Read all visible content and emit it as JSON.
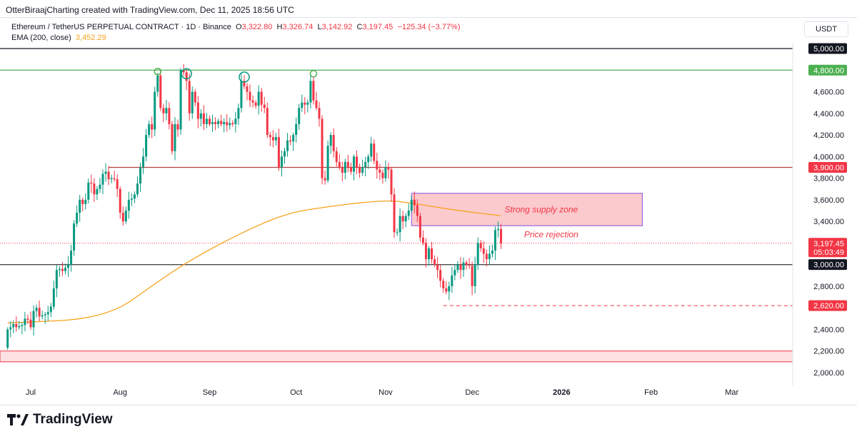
{
  "credit": "OtterBiraajCharting created with TradingView.com, Dec 11, 2025 18:56 UTC",
  "legend": {
    "symbol": "Ethereum / TetherUS PERPETUAL CONTRACT · 1D · Binance",
    "o_label": "O",
    "o": "3,322.80",
    "h_label": "H",
    "h": "3,326.74",
    "l_label": "L",
    "l": "3,142.92",
    "c_label": "C",
    "c": "3,197.45",
    "change": "−125.34 (−3.77%)",
    "ema_label": "EMA (200, close)",
    "ema_value": "3,452.29"
  },
  "currency_button": "USDT",
  "logo": "TradingView",
  "colors": {
    "up": "#089981",
    "down": "#f23645",
    "ema": "#f7a21b",
    "resistance_green": "#4caf50",
    "level_red": "#b2413f",
    "zone_fill": "#f9c4c8",
    "zone_border": "#9c6ade"
  },
  "chart_data": {
    "type": "candlestick",
    "title": "",
    "ylim": [
      2000,
      5000
    ],
    "y_ticks": [
      "4,600.00",
      "4,400.00",
      "4,200.00",
      "4,000.00",
      "3,800.00",
      "3,600.00",
      "3,400.00",
      "2,800.00",
      "2,400.00",
      "2,200.00",
      "2,000.00"
    ],
    "x_ticks": [
      {
        "label": "Jul",
        "date": "2025-07-01"
      },
      {
        "label": "Aug",
        "date": "2025-08-01"
      },
      {
        "label": "Sep",
        "date": "2025-09-01"
      },
      {
        "label": "Oct",
        "date": "2025-10-01"
      },
      {
        "label": "Nov",
        "date": "2025-11-01"
      },
      {
        "label": "Dec",
        "date": "2025-12-01"
      },
      {
        "label": "2026",
        "date": "2026-01-01",
        "bold": true
      },
      {
        "label": "Feb",
        "date": "2026-02-01"
      },
      {
        "label": "Mar",
        "date": "2026-03-01"
      }
    ],
    "xlim": [
      "2025-06-22",
      "2026-03-25"
    ],
    "first_open": 2230,
    "candles": [
      {
        "month": "2025-06",
        "first_day": 23,
        "close": [
          2400,
          2420,
          2450,
          2420,
          2430,
          2440,
          2500,
          2490
        ]
      },
      {
        "month": "2025-07",
        "first_day": 1,
        "close": [
          2420,
          2570,
          2600,
          2520,
          2530,
          2540,
          2560,
          2610,
          2780,
          2950,
          2960,
          2940,
          2970,
          3000,
          3130,
          3380,
          3480,
          3600,
          3560,
          3600,
          3760,
          3750,
          3650,
          3700,
          3740,
          3840,
          3860,
          3790,
          3800,
          3790,
          3700
        ]
      },
      {
        "month": "2025-08",
        "first_day": 1,
        "close": [
          3480,
          3400,
          3500,
          3600,
          3610,
          3650,
          3750,
          3900,
          4000,
          4200,
          4300,
          4250,
          4600,
          4750,
          4450,
          4400,
          4450,
          4300,
          4050,
          4300,
          4250,
          4800,
          4780,
          4700,
          4400,
          4600,
          4500,
          4350,
          4400,
          4300,
          4350
        ]
      },
      {
        "month": "2025-09",
        "first_day": 1,
        "close": [
          4300,
          4320,
          4300,
          4330,
          4300,
          4320,
          4290,
          4310,
          4300,
          4350,
          4450,
          4700,
          4650,
          4600,
          4520,
          4500,
          4470,
          4600,
          4480,
          4450,
          4200,
          4180,
          4150,
          4180,
          3900,
          4000,
          4050,
          4150,
          4140,
          4200
        ]
      },
      {
        "month": "2025-10",
        "first_day": 1,
        "close": [
          4300,
          4450,
          4500,
          4480,
          4500,
          4700,
          4520,
          4450,
          4350,
          3800,
          3780,
          4100,
          4200,
          4050,
          3950,
          3900,
          3850,
          3950,
          3900,
          3860,
          4000,
          3900,
          3850,
          3900,
          3950,
          4000,
          4120,
          3960,
          3880,
          3850,
          3800
        ]
      },
      {
        "month": "2025-11",
        "first_day": 1,
        "close": [
          3900,
          3880,
          3650,
          3300,
          3300,
          3450,
          3400,
          3450,
          3500,
          3600,
          3550,
          3450,
          3250,
          3200,
          3050,
          3150,
          3050,
          3000,
          2950,
          2850,
          2780,
          2750,
          2800,
          2900,
          2950,
          3000,
          2950,
          3020,
          3000,
          2990
        ]
      },
      {
        "month": "2025-12",
        "first_day": 1,
        "close": [
          2800,
          3000,
          3200,
          3150,
          3100,
          3050,
          3100,
          3130,
          3320,
          3330,
          3197.45
        ]
      }
    ],
    "ema_200": [
      {
        "date": "2025-06-23",
        "value": 2460
      },
      {
        "date": "2025-07-27",
        "value": 2500
      },
      {
        "date": "2025-08-14",
        "value": 2840
      },
      {
        "date": "2025-08-24",
        "value": 3020
      },
      {
        "date": "2025-09-10",
        "value": 3270
      },
      {
        "date": "2025-09-27",
        "value": 3470
      },
      {
        "date": "2025-10-10",
        "value": 3530
      },
      {
        "date": "2025-11-01",
        "value": 3600
      },
      {
        "date": "2025-11-11",
        "value": 3565
      },
      {
        "date": "2025-11-26",
        "value": 3500
      },
      {
        "date": "2025-12-11",
        "value": 3452.29
      }
    ],
    "levels": [
      {
        "price": 5000,
        "label": "5,000.00",
        "style": "solid",
        "color": "#131722",
        "badge": "#131722"
      },
      {
        "price": 4800,
        "label": "4,800.00",
        "style": "solid",
        "color": "#4caf50",
        "badge": "#4caf50"
      },
      {
        "price": 3900,
        "label": "3,900.00",
        "style": "solid",
        "color": "#b2413f",
        "badge": "#f23645",
        "from": "2025-07-28"
      },
      {
        "price": 3000,
        "label": "3,000.00",
        "style": "solid",
        "color": "#4a4a4a",
        "badge": "#131722"
      },
      {
        "price": 2620,
        "label": "2,620.00",
        "style": "dashed",
        "color": "#f23645",
        "badge": "#f23645",
        "from": "2025-11-21"
      }
    ],
    "current_price": {
      "price": 3197.45,
      "label": "3,197.45",
      "countdown": "05:03:49"
    },
    "supply_zone": {
      "label": "Strong supply zone",
      "top": 3660,
      "bottom": 3360,
      "from": "2025-11-10",
      "to": "2026-01-29"
    },
    "demand_band": {
      "top": 2200,
      "bottom": 2100
    },
    "annotations": [
      {
        "text": "Price rejection",
        "date": "2025-12-19",
        "price": 3280
      }
    ],
    "top_markers": [
      {
        "date": "2025-08-14",
        "price": 4800,
        "size": "small"
      },
      {
        "date": "2025-08-24",
        "price": 4780,
        "size": "large"
      },
      {
        "date": "2025-09-13",
        "price": 4750,
        "size": "large"
      },
      {
        "date": "2025-10-07",
        "price": 4780,
        "size": "small"
      }
    ]
  }
}
